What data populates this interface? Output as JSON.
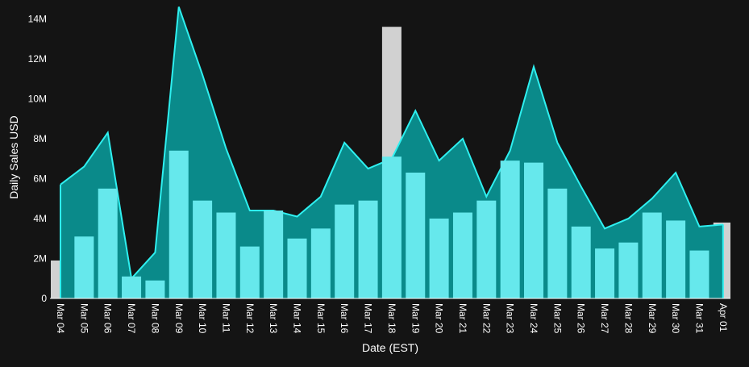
{
  "chart_data": {
    "type": "bar",
    "xlabel": "Date (EST)",
    "ylabel": "Daily Sales USD",
    "ylim": [
      0,
      14700000
    ],
    "yticks": [
      {
        "value": 0,
        "label": "0"
      },
      {
        "value": 2000000,
        "label": "2M"
      },
      {
        "value": 4000000,
        "label": "4M"
      },
      {
        "value": 6000000,
        "label": "6M"
      },
      {
        "value": 8000000,
        "label": "8M"
      },
      {
        "value": 10000000,
        "label": "10M"
      },
      {
        "value": 12000000,
        "label": "12M"
      },
      {
        "value": 14000000,
        "label": "14M"
      }
    ],
    "categories": [
      "Mar 04",
      "Mar 05",
      "Mar 06",
      "Mar 07",
      "Mar 08",
      "Mar 09",
      "Mar 10",
      "Mar 11",
      "Mar 12",
      "Mar 13",
      "Mar 14",
      "Mar 15",
      "Mar 16",
      "Mar 17",
      "Mar 18",
      "Mar 19",
      "Mar 20",
      "Mar 21",
      "Mar 22",
      "Mar 23",
      "Mar 24",
      "Mar 25",
      "Mar 26",
      "Mar 27",
      "Mar 28",
      "Mar 29",
      "Mar 30",
      "Mar 31",
      "Apr 01"
    ],
    "series": [
      {
        "type": "area",
        "values": [
          5700000,
          6600000,
          8300000,
          1000000,
          2300000,
          14600000,
          11200000,
          7500000,
          4400000,
          4400000,
          4100000,
          5100000,
          7800000,
          6500000,
          7000000,
          9400000,
          6900000,
          8000000,
          5100000,
          7400000,
          11600000,
          7800000,
          5600000,
          3500000,
          4000000,
          5000000,
          6300000,
          3600000,
          3700000
        ]
      },
      {
        "type": "bar",
        "values": [
          1900000,
          3100000,
          5500000,
          1100000,
          900000,
          7400000,
          4900000,
          4300000,
          2600000,
          4400000,
          3000000,
          3500000,
          4700000,
          4900000,
          7100000,
          6300000,
          4000000,
          4300000,
          4900000,
          6900000,
          6800000,
          5500000,
          3600000,
          2500000,
          2800000,
          4300000,
          3900000,
          2400000,
          3800000
        ]
      },
      {
        "type": "bar",
        "values": [
          0,
          0,
          0,
          0,
          0,
          0,
          0,
          0,
          0,
          0,
          0,
          0,
          0,
          0,
          13600000,
          0,
          0,
          0,
          0,
          0,
          0,
          0,
          0,
          0,
          0,
          0,
          0,
          0,
          0
        ]
      }
    ],
    "colors": {
      "background": "#141414",
      "area_fill": "#0a8a8a",
      "area_line": "#2ef0f0",
      "bar": "#66e8ec",
      "highlight_bar": "#d1d1d1",
      "axis": "#ffffff"
    },
    "x_partial_edges": true,
    "grid": false
  }
}
